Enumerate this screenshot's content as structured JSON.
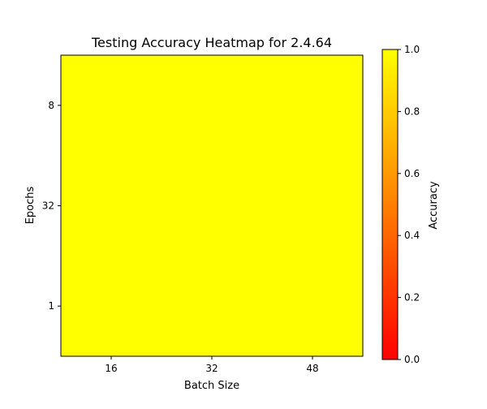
{
  "chart_data": {
    "type": "heatmap",
    "title": "Testing Accuracy Heatmap for 2.4.64",
    "xlabel": "Batch Size",
    "ylabel": "Epochs",
    "x_categories": [
      "16",
      "32",
      "48"
    ],
    "y_categories": [
      "8",
      "32",
      "1"
    ],
    "values": [
      [
        1.0,
        1.0,
        1.0
      ],
      [
        1.0,
        1.0,
        1.0
      ],
      [
        1.0,
        1.0,
        1.0
      ]
    ],
    "colorbar": {
      "label": "Accuracy",
      "min": 0.0,
      "max": 1.0,
      "ticks": [
        "0.0",
        "0.2",
        "0.4",
        "0.6",
        "0.8",
        "1.0"
      ],
      "colormap": "autumn",
      "color_low": "#ff0000",
      "color_high": "#ffff00"
    },
    "grid": false
  }
}
